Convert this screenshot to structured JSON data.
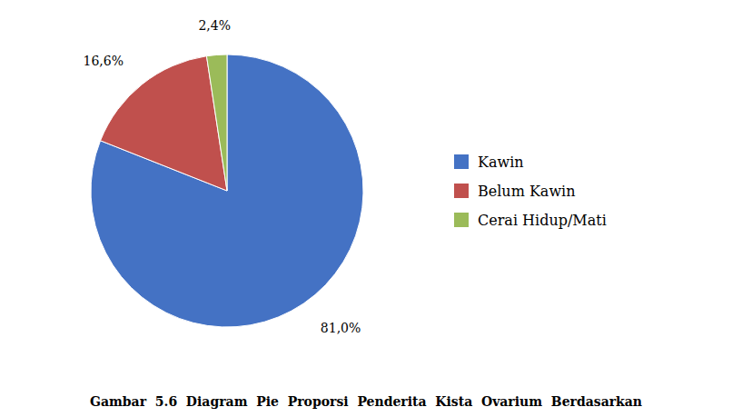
{
  "chart_data": {
    "type": "pie",
    "caption": "Gambar  5.6  Diagram  Pie  Proporsi  Penderita  Kista  Ovarium  Berdasarkan",
    "categories": [
      "Kawin",
      "Belum Kawin",
      "Cerai Hidup/Mati"
    ],
    "values": [
      81.0,
      16.6,
      2.4
    ],
    "value_labels": [
      "81,0%",
      "16,6%",
      "2,4%"
    ],
    "colors": [
      "#4472C4",
      "#C0504D",
      "#9BBB59"
    ],
    "data_labels": true,
    "legend": "right"
  }
}
